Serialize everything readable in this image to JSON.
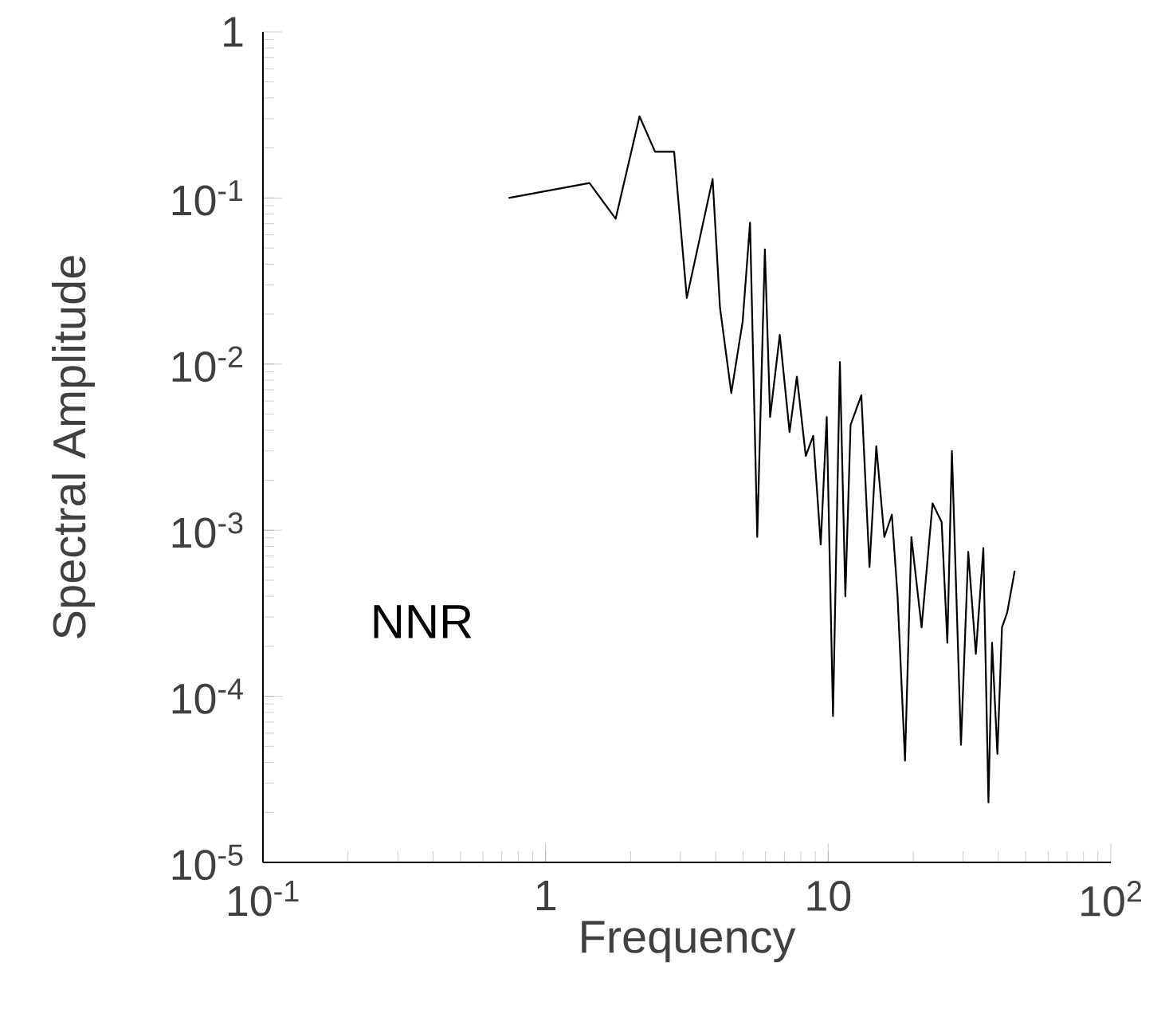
{
  "chart_data": {
    "type": "line",
    "xlabel": "Frequency",
    "ylabel": "Spectral Amplitude",
    "annotations": [
      "NNR"
    ],
    "log": "xy",
    "grid": false,
    "marker": "none",
    "line_style": "solid",
    "xlim": [
      0.1,
      100
    ],
    "ylim": [
      1e-05,
      1
    ],
    "xticks": [
      {
        "value": 0.1,
        "label": "10$^{-1}$"
      },
      1,
      10,
      {
        "value": 100,
        "label": "10$^{2}$"
      }
    ],
    "yticks": [
      {
        "value": 1e-05,
        "label": "10$^{-5}$"
      },
      {
        "value": 0.0001,
        "label": "10$^{-4}$"
      },
      {
        "value": 0.001,
        "label": "10$^{-3}$"
      },
      {
        "value": 0.01,
        "label": "10$^{-2}$"
      },
      {
        "value": 0.1,
        "label": "10$^{-1}$"
      },
      1
    ],
    "series": [
      {
        "color": "#000000",
        "x": [
          0.74,
          1.43,
          1.77,
          2.15,
          2.44,
          2.85,
          3.16,
          3.9,
          4.14,
          4.54,
          4.98,
          5.29,
          5.61,
          5.97,
          6.23,
          6.74,
          7.3,
          7.75,
          8.33,
          8.85,
          9.41,
          9.88,
          10.4,
          11.0,
          11.5,
          12.0,
          13.1,
          14.0,
          14.8,
          15.8,
          16.8,
          17.6,
          18.7,
          19.7,
          21.4,
          23.4,
          25.2,
          26.4,
          27.4,
          29.5,
          31.3,
          33.3,
          35.4,
          36.9,
          38.0,
          39.7,
          41.2,
          43.0,
          45.7
        ],
        "values": [
          0.1,
          0.123,
          0.075,
          0.31,
          0.19,
          0.19,
          0.025,
          0.13,
          0.022,
          0.0067,
          0.018,
          0.071,
          0.00091,
          0.049,
          0.0048,
          0.015,
          0.0039,
          0.0084,
          0.0028,
          0.0037,
          0.00082,
          0.0048,
          7.6e-05,
          0.0103,
          0.0004,
          0.0043,
          0.0065,
          0.0006,
          0.0032,
          0.00091,
          0.00124,
          0.0004,
          4.1e-05,
          0.00091,
          0.00026,
          0.00145,
          0.00112,
          0.00021,
          0.003,
          5.1e-05,
          0.00074,
          0.00018,
          0.00078,
          2.3e-05,
          0.00021,
          4.5e-05,
          0.00026,
          0.00032,
          0.00057
        ]
      }
    ]
  }
}
